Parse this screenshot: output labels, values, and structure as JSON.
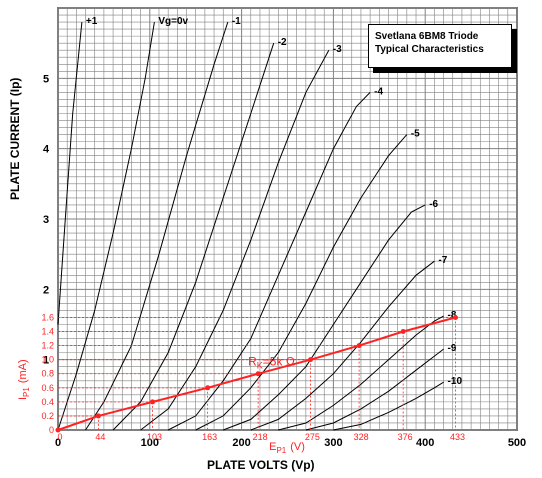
{
  "chart_data": {
    "type": "line",
    "title_lines": [
      "Svetlana 6BM8 Triode",
      "Typical Characteristics"
    ],
    "xlabel": "PLATE VOLTS (Vp)",
    "ylabel": "PLATE CURRENT (Ip)",
    "xlim": [
      0,
      500
    ],
    "ylim": [
      0,
      6
    ],
    "x_ticks": [
      "0",
      "100",
      "200",
      "300",
      "400",
      "500"
    ],
    "y_ticks_right": [
      "1",
      "2",
      "3",
      "4",
      "5"
    ],
    "grid": true,
    "curves": [
      {
        "label": "+1",
        "points": [
          [
            0,
            1.5
          ],
          [
            8,
            3.0
          ],
          [
            16,
            4.5
          ],
          [
            26,
            5.8
          ]
        ]
      },
      {
        "label": "Vg=0v",
        "points": [
          [
            0,
            0
          ],
          [
            20,
            0.8
          ],
          [
            40,
            1.7
          ],
          [
            60,
            2.8
          ],
          [
            80,
            4.0
          ],
          [
            95,
            5.0
          ],
          [
            105,
            5.8
          ]
        ]
      },
      {
        "label": "-1",
        "points": [
          [
            30,
            0
          ],
          [
            50,
            0.4
          ],
          [
            80,
            1.2
          ],
          [
            110,
            2.5
          ],
          [
            140,
            3.9
          ],
          [
            170,
            5.2
          ],
          [
            185,
            5.8
          ]
        ]
      },
      {
        "label": "-2",
        "points": [
          [
            60,
            0
          ],
          [
            90,
            0.4
          ],
          [
            120,
            1.1
          ],
          [
            150,
            2.1
          ],
          [
            180,
            3.3
          ],
          [
            210,
            4.5
          ],
          [
            235,
            5.5
          ]
        ]
      },
      {
        "label": "-3",
        "points": [
          [
            90,
            0
          ],
          [
            120,
            0.3
          ],
          [
            150,
            0.9
          ],
          [
            180,
            1.7
          ],
          [
            210,
            2.7
          ],
          [
            240,
            3.8
          ],
          [
            270,
            4.8
          ],
          [
            295,
            5.4
          ]
        ]
      },
      {
        "label": "-4",
        "points": [
          [
            120,
            0
          ],
          [
            150,
            0.2
          ],
          [
            180,
            0.7
          ],
          [
            210,
            1.3
          ],
          [
            240,
            2.2
          ],
          [
            270,
            3.1
          ],
          [
            300,
            4.0
          ],
          [
            325,
            4.6
          ],
          [
            340,
            4.8
          ]
        ]
      },
      {
        "label": "-5",
        "points": [
          [
            150,
            0
          ],
          [
            180,
            0.2
          ],
          [
            210,
            0.6
          ],
          [
            240,
            1.1
          ],
          [
            270,
            1.8
          ],
          [
            300,
            2.6
          ],
          [
            330,
            3.3
          ],
          [
            360,
            3.9
          ],
          [
            380,
            4.2
          ]
        ]
      },
      {
        "label": "-6",
        "points": [
          [
            180,
            0
          ],
          [
            210,
            0.15
          ],
          [
            240,
            0.5
          ],
          [
            270,
            0.9
          ],
          [
            300,
            1.5
          ],
          [
            330,
            2.1
          ],
          [
            360,
            2.7
          ],
          [
            385,
            3.1
          ],
          [
            400,
            3.2
          ]
        ]
      },
      {
        "label": "-7",
        "points": [
          [
            210,
            0
          ],
          [
            240,
            0.15
          ],
          [
            270,
            0.45
          ],
          [
            300,
            0.8
          ],
          [
            330,
            1.25
          ],
          [
            360,
            1.75
          ],
          [
            390,
            2.2
          ],
          [
            410,
            2.4
          ]
        ]
      },
      {
        "label": "-8",
        "points": [
          [
            240,
            0
          ],
          [
            270,
            0.1
          ],
          [
            300,
            0.35
          ],
          [
            330,
            0.65
          ],
          [
            360,
            1.0
          ],
          [
            390,
            1.35
          ],
          [
            410,
            1.55
          ],
          [
            420,
            1.62
          ]
        ]
      },
      {
        "label": "-9",
        "points": [
          [
            270,
            0
          ],
          [
            300,
            0.1
          ],
          [
            330,
            0.3
          ],
          [
            360,
            0.55
          ],
          [
            390,
            0.85
          ],
          [
            410,
            1.05
          ],
          [
            420,
            1.15
          ]
        ]
      },
      {
        "label": "-10",
        "points": [
          [
            300,
            0
          ],
          [
            330,
            0.08
          ],
          [
            360,
            0.25
          ],
          [
            390,
            0.45
          ],
          [
            410,
            0.6
          ],
          [
            420,
            0.68
          ]
        ]
      }
    ],
    "load_line": {
      "label_r": "R",
      "label_sub": "K",
      "label_val": "=5k Ω",
      "points": [
        [
          0,
          0
        ],
        [
          44,
          0.2
        ],
        [
          103,
          0.4
        ],
        [
          163,
          0.6
        ],
        [
          218,
          0.8
        ],
        [
          275,
          1.0
        ],
        [
          328,
          1.2
        ],
        [
          376,
          1.4
        ],
        [
          433,
          1.6
        ]
      ],
      "x_ticks": [
        "0",
        "44",
        "103",
        "163",
        "218",
        "275",
        "328",
        "376",
        "433"
      ],
      "y_ticks": [
        "0",
        "0.2",
        "0.4",
        "0.6",
        "0.8",
        "1.0",
        "1.2",
        "1.4",
        "1.6"
      ],
      "ylabel_main": "I",
      "ylabel_sub": "P1",
      "ylabel_unit": "(mA)",
      "xlabel_main": "E",
      "xlabel_sub": "P1",
      "xlabel_unit": "(V)"
    },
    "colors": {
      "curves": "#000000",
      "grid": "#808080",
      "load_line": "#ff2222"
    }
  }
}
